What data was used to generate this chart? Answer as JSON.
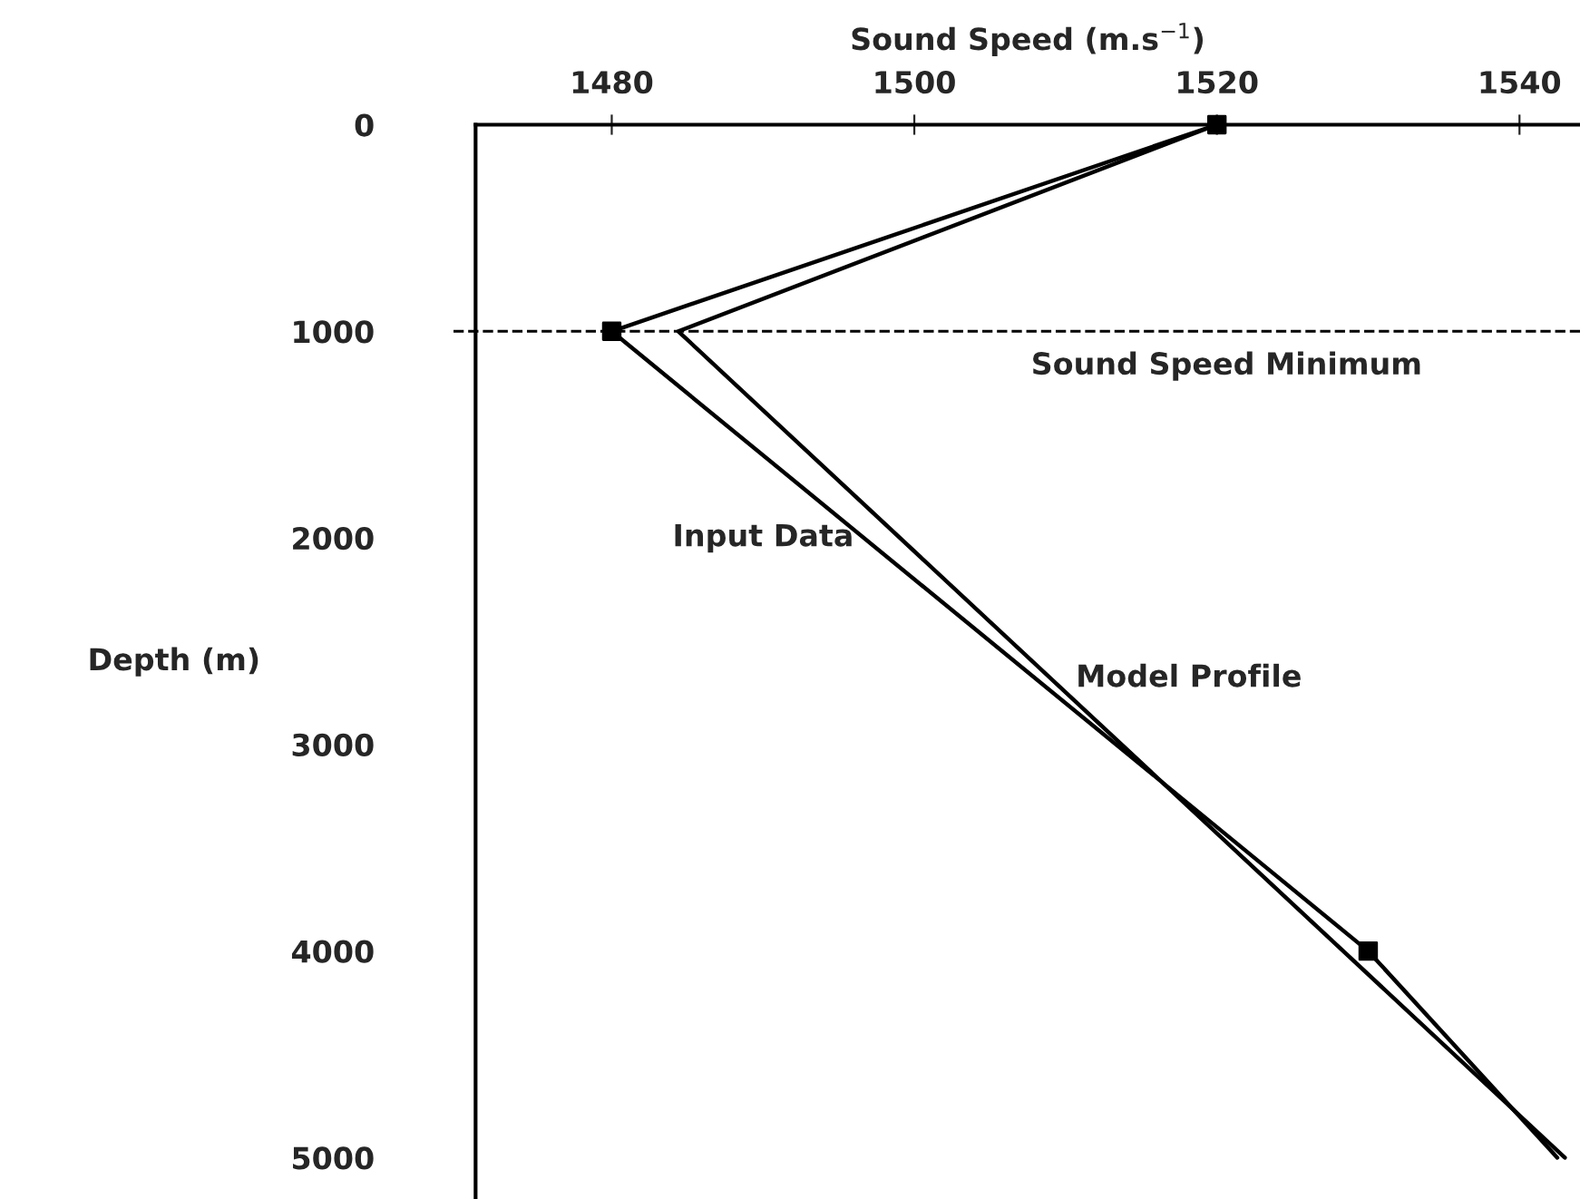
{
  "chart_data": {
    "type": "line",
    "xlabel": "Sound Speed (m.s$^{−1}$)",
    "ylabel": "Depth (m)",
    "xlim": [
      1471,
      1544
    ],
    "xticks": [
      1480,
      1500,
      1520,
      1540
    ],
    "ylim": [
      5200,
      0
    ],
    "yticks": [
      0,
      1000,
      2000,
      3000,
      4000,
      5000
    ],
    "grid": false,
    "legend": false,
    "series": [
      {
        "name": "Input Data",
        "color": "#000000",
        "x": [
          1520,
          1480,
          1530,
          1542.5
        ],
        "values": [
          0,
          1000,
          4000,
          5000
        ],
        "line_style": "solid",
        "marker": "none"
      },
      {
        "name": "Model Profile",
        "color": "#000000",
        "x": [
          1520,
          1484.4,
          1543
        ],
        "values": [
          0,
          1000,
          5000
        ],
        "line_style": "solid",
        "marker": "none"
      },
      {
        "type": "scatter",
        "color": "#000000",
        "x": [
          1520,
          1480,
          1530
        ],
        "values": [
          0,
          1000,
          4000
        ],
        "marker": "square"
      }
    ],
    "ref_lines": [
      {
        "axis": "y",
        "value": 1000,
        "label": "Sound Speed Minimum",
        "line_style": "dashed",
        "color": "#000000"
      }
    ]
  }
}
